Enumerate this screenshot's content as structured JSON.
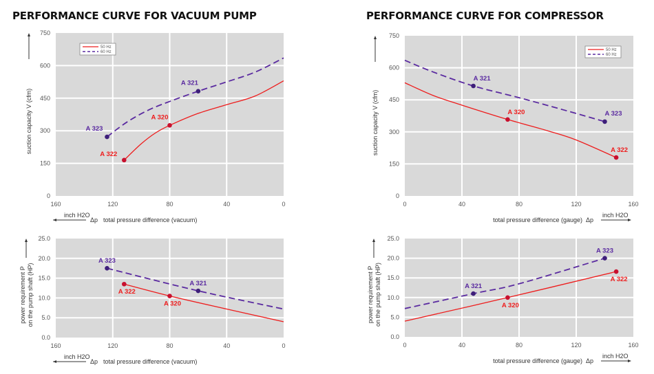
{
  "titles": {
    "left": "PERFORMANCE CURVE FOR VACUUM PUMP",
    "right": "PERFORMANCE CURVE FOR COMPRESSOR"
  },
  "colors": {
    "hz50": "#ee1c1c",
    "hz60": "#5a2aa0",
    "plot_bg": "#d9d9d9",
    "grid": "#ffffff"
  },
  "chart_data": [
    {
      "id": "vacuum-capacity",
      "type": "line",
      "title": "PERFORMANCE CURVE FOR VACUUM PUMP",
      "ylabel": "suction capacity V (cfm)",
      "xlabel": "total pressure difference (vacuum)",
      "xunit": "inch H2O",
      "delta": "Δp",
      "xlim": [
        160,
        0
      ],
      "ylim": [
        0,
        750
      ],
      "xticks": [
        160,
        120,
        80,
        40,
        0
      ],
      "yticks": [
        0,
        150,
        300,
        450,
        600,
        750
      ],
      "ytick_labels": [
        "0",
        "150",
        "300",
        "450",
        "600",
        "750"
      ],
      "grid": true,
      "legend": {
        "position": "top-left",
        "entries": [
          "50 Hz",
          "60 Hz"
        ]
      },
      "series": [
        {
          "name": "50 Hz",
          "style": "solid",
          "x": [
            112,
            100,
            90,
            80,
            60,
            40,
            20,
            0
          ],
          "y": [
            165,
            240,
            290,
            325,
            380,
            420,
            460,
            530
          ]
        },
        {
          "name": "60 Hz",
          "style": "dashed",
          "x": [
            124,
            110,
            95,
            80,
            60,
            40,
            20,
            0
          ],
          "y": [
            272,
            340,
            395,
            435,
            482,
            525,
            570,
            635
          ]
        }
      ],
      "points": [
        {
          "label": "A 322",
          "series": "50 Hz",
          "x": 112,
          "y": 165,
          "pos": "left"
        },
        {
          "label": "A 320",
          "series": "50 Hz",
          "x": 80,
          "y": 325,
          "pos": "top-left"
        },
        {
          "label": "A 323",
          "series": "60 Hz",
          "x": 124,
          "y": 272,
          "pos": "top-left"
        },
        {
          "label": "A 321",
          "series": "60 Hz",
          "x": 60,
          "y": 482,
          "pos": "top-left"
        }
      ]
    },
    {
      "id": "compressor-capacity",
      "type": "line",
      "title": "PERFORMANCE CURVE FOR COMPRESSOR",
      "ylabel": "suction capacity V (cfm)",
      "xlabel": "total pressure difference (gauge)",
      "xunit": "inch H2O",
      "delta": "Δp",
      "xlim": [
        0,
        160
      ],
      "ylim": [
        0,
        750
      ],
      "xticks": [
        0,
        40,
        80,
        120,
        160
      ],
      "yticks": [
        0,
        150,
        300,
        450,
        600,
        750
      ],
      "ytick_labels": [
        "0",
        "150",
        "300",
        "450",
        "600",
        "750"
      ],
      "grid": true,
      "legend": {
        "position": "top-right",
        "entries": [
          "50 Hz",
          "60 Hz"
        ]
      },
      "series": [
        {
          "name": "50 Hz",
          "style": "solid",
          "x": [
            0,
            20,
            40,
            72,
            100,
            120,
            148
          ],
          "y": [
            530,
            470,
            425,
            358,
            305,
            262,
            180
          ]
        },
        {
          "name": "60 Hz",
          "style": "dashed",
          "x": [
            0,
            20,
            48,
            80,
            110,
            140
          ],
          "y": [
            635,
            580,
            515,
            460,
            405,
            348
          ]
        }
      ],
      "points": [
        {
          "label": "A 320",
          "series": "50 Hz",
          "x": 72,
          "y": 358,
          "pos": "top"
        },
        {
          "label": "A 322",
          "series": "50 Hz",
          "x": 148,
          "y": 180,
          "pos": "top"
        },
        {
          "label": "A 321",
          "series": "60 Hz",
          "x": 48,
          "y": 515,
          "pos": "top"
        },
        {
          "label": "A 323",
          "series": "60 Hz",
          "x": 140,
          "y": 348,
          "pos": "top-right"
        }
      ]
    },
    {
      "id": "vacuum-power",
      "type": "line",
      "ylabel": "power requirement P on the pump shaft (HP)",
      "ylabel_lines": [
        "power requirement P",
        "on the pump shaft (HP)"
      ],
      "xlabel": "total pressure difference (vacuum)",
      "xunit": "inch H2O",
      "delta": "Δp",
      "xlim": [
        160,
        0
      ],
      "ylim": [
        0,
        25
      ],
      "xticks": [
        160,
        120,
        80,
        40,
        0
      ],
      "yticks": [
        0,
        5,
        10,
        15,
        20,
        25
      ],
      "ytick_labels": [
        "0.0",
        "5.0",
        "10.0",
        "15.0",
        "20.0",
        "25.0"
      ],
      "grid": true,
      "series": [
        {
          "name": "50 Hz",
          "style": "solid",
          "x": [
            112,
            80,
            40,
            0
          ],
          "y": [
            13.5,
            10.5,
            7.2,
            4.0
          ]
        },
        {
          "name": "60 Hz",
          "style": "dashed",
          "x": [
            124,
            60,
            0
          ],
          "y": [
            17.5,
            11.8,
            7.2
          ]
        }
      ],
      "points": [
        {
          "label": "A 323",
          "series": "60 Hz",
          "x": 124,
          "y": 17.5,
          "pos": "top"
        },
        {
          "label": "A 322",
          "series": "50 Hz",
          "x": 112,
          "y": 13.5,
          "pos": "bottom"
        },
        {
          "label": "A 320",
          "series": "50 Hz",
          "x": 80,
          "y": 10.5,
          "pos": "bottom"
        },
        {
          "label": "A 321",
          "series": "60 Hz",
          "x": 60,
          "y": 11.8,
          "pos": "top"
        }
      ]
    },
    {
      "id": "compressor-power",
      "type": "line",
      "ylabel": "power requirement P on the pump shaft (HP)",
      "ylabel_lines": [
        "power requirement P",
        "on the pump shaft (HP)"
      ],
      "xlabel": "total pressure difference (gauge)",
      "xunit": "inch H2O",
      "delta": "Δp",
      "xlim": [
        0,
        160
      ],
      "ylim": [
        0,
        25
      ],
      "xticks": [
        0,
        40,
        80,
        120,
        160
      ],
      "yticks": [
        0,
        5,
        10,
        15,
        20,
        25
      ],
      "ytick_labels": [
        "0.0",
        "5.0",
        "10.0",
        "15.0",
        "20.0",
        "25.0"
      ],
      "grid": true,
      "series": [
        {
          "name": "50 Hz",
          "style": "solid",
          "x": [
            0,
            72,
            148
          ],
          "y": [
            4.0,
            10.0,
            16.6
          ]
        },
        {
          "name": "60 Hz",
          "style": "dashed",
          "x": [
            0,
            48,
            80,
            140
          ],
          "y": [
            7.2,
            11.0,
            13.5,
            20.0
          ]
        }
      ],
      "points": [
        {
          "label": "A 321",
          "series": "60 Hz",
          "x": 48,
          "y": 11.0,
          "pos": "top"
        },
        {
          "label": "A 320",
          "series": "50 Hz",
          "x": 72,
          "y": 10.0,
          "pos": "bottom"
        },
        {
          "label": "A 323",
          "series": "60 Hz",
          "x": 140,
          "y": 20.0,
          "pos": "top"
        },
        {
          "label": "A 322",
          "series": "50 Hz",
          "x": 148,
          "y": 16.6,
          "pos": "bottom"
        }
      ]
    }
  ]
}
